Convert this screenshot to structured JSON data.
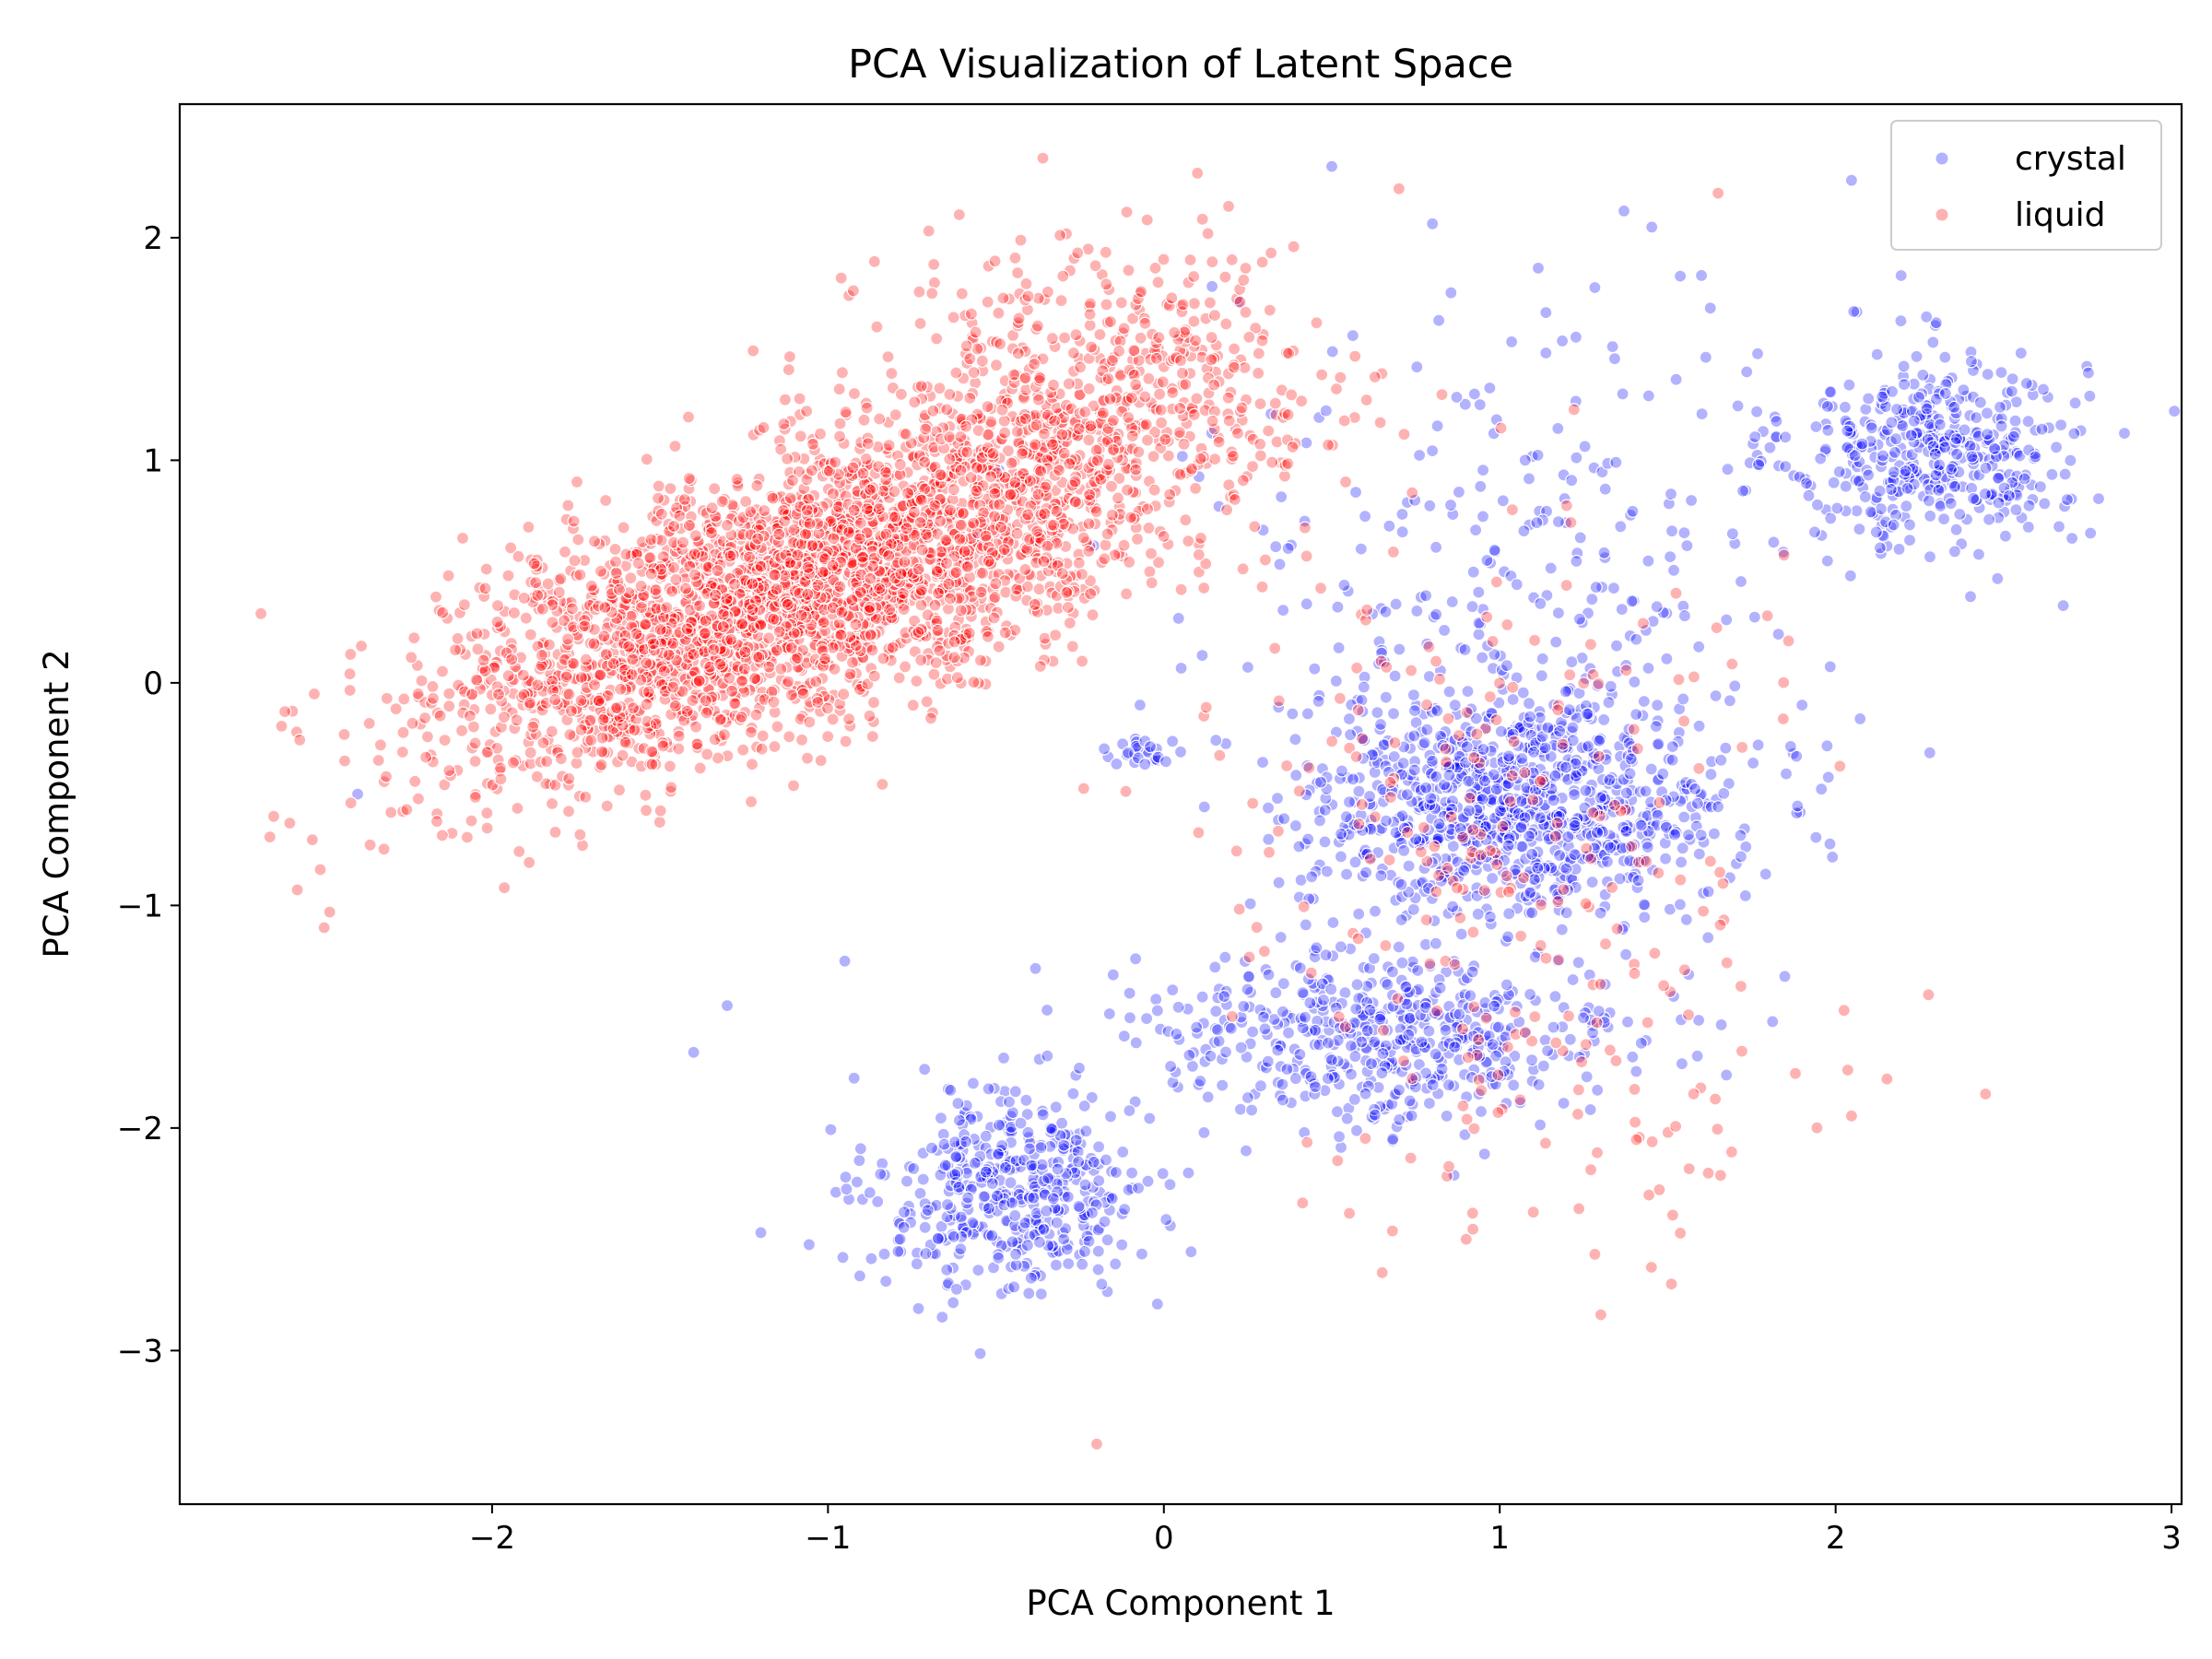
{
  "chart_data": {
    "type": "scatter",
    "title": "PCA Visualization of Latent Space",
    "xlabel": "PCA Component 1",
    "ylabel": "PCA Component 2",
    "xlim": [
      -2.93,
      3.03
    ],
    "ylim": [
      -3.69,
      2.6
    ],
    "xticks": [
      -2,
      -1,
      0,
      1,
      2,
      3
    ],
    "xtick_labels": [
      "−2",
      "−1",
      "0",
      "1",
      "2",
      "3"
    ],
    "yticks": [
      -3,
      -2,
      -1,
      0,
      1,
      2
    ],
    "ytick_labels": [
      "−3",
      "−2",
      "−1",
      "0",
      "1",
      "2"
    ],
    "grid": false,
    "legend_position": "top-right",
    "series": [
      {
        "name": "crystal",
        "color": "#0000ff",
        "alpha": 0.3,
        "clusters": [
          {
            "center": [
              2.3,
              1.05
            ],
            "spread": [
              0.22,
              0.22
            ],
            "count": 420
          },
          {
            "center": [
              1.05,
              -0.55
            ],
            "spread": [
              0.32,
              0.26
            ],
            "count": 950
          },
          {
            "center": [
              0.65,
              -1.6
            ],
            "spread": [
              0.38,
              0.2
            ],
            "count": 520
          },
          {
            "center": [
              -0.45,
              -2.3
            ],
            "spread": [
              0.2,
              0.22
            ],
            "count": 440
          },
          {
            "center": [
              -0.05,
              -0.3
            ],
            "spread": [
              0.05,
              0.03
            ],
            "count": 25
          },
          {
            "center": [
              1.1,
              0.6
            ],
            "spread": [
              0.5,
              0.6
            ],
            "count": 260
          }
        ],
        "outliers": [
          [
            0.5,
            2.32
          ],
          [
            -2.4,
            -0.5
          ],
          [
            -1.4,
            -1.66
          ],
          [
            -1.2,
            -2.47
          ],
          [
            -0.66,
            -2.85
          ],
          [
            1.9,
            -0.1
          ],
          [
            -1.3,
            -1.45
          ],
          [
            -0.95,
            -1.25
          ],
          [
            1.37,
            2.12
          ],
          [
            0.25,
            0.07
          ]
        ]
      },
      {
        "name": "liquid",
        "color": "#ff0000",
        "alpha": 0.3,
        "clusters": [
          {
            "center": [
              -1.05,
              0.45
            ],
            "spread": [
              0.55,
              0.42
            ],
            "count": 3100,
            "correlation": 0.7
          },
          {
            "center": [
              -0.2,
              1.4
            ],
            "spread": [
              0.35,
              0.3
            ],
            "count": 350
          },
          {
            "center": [
              1.2,
              -1.7
            ],
            "spread": [
              0.45,
              0.45
            ],
            "count": 120
          },
          {
            "center": [
              0.9,
              -0.4
            ],
            "spread": [
              0.45,
              0.5
            ],
            "count": 160
          }
        ],
        "outliers": [
          [
            -2.65,
            -0.6
          ],
          [
            -2.58,
            -0.93
          ],
          [
            -2.5,
            -1.1
          ],
          [
            -0.2,
            -3.42
          ],
          [
            0.1,
            2.29
          ],
          [
            0.7,
            2.22
          ],
          [
            1.65,
            2.2
          ],
          [
            0.65,
            -2.65
          ],
          [
            0.9,
            -2.5
          ],
          [
            -0.7,
            2.03
          ]
        ]
      }
    ]
  }
}
